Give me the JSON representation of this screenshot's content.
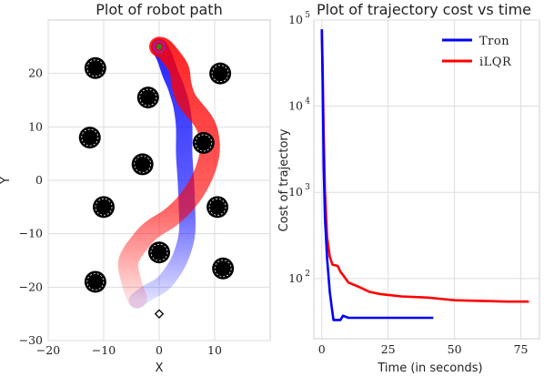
{
  "chart_data": [
    {
      "type": "scatter",
      "title": "Plot of robot path",
      "xlabel": "X",
      "ylabel": "Y",
      "xlim": [
        -20,
        20
      ],
      "ylim": [
        -30,
        30
      ],
      "xticks": [
        -20,
        -10,
        0,
        10
      ],
      "xtick_labels": [
        "−20",
        "−10",
        "0",
        "10"
      ],
      "yticks": [
        -30,
        -20,
        -10,
        0,
        10,
        20
      ],
      "ytick_labels": [
        "−30",
        "−20",
        "−10",
        "0",
        "10",
        "20"
      ],
      "grid": true,
      "obstacles": [
        {
          "x": -11.5,
          "y": 21
        },
        {
          "x": -12.5,
          "y": 8
        },
        {
          "x": -2,
          "y": 15.5
        },
        {
          "x": -3,
          "y": 3
        },
        {
          "x": -10,
          "y": -5
        },
        {
          "x": 11,
          "y": 20
        },
        {
          "x": 8,
          "y": 7
        },
        {
          "x": 10.5,
          "y": -5
        },
        {
          "x": 0,
          "y": -13.5
        },
        {
          "x": -11.5,
          "y": -19
        },
        {
          "x": 11.5,
          "y": -16.5
        }
      ],
      "start": {
        "x": 0,
        "y": -25
      },
      "goal": {
        "x": 0,
        "y": 25
      },
      "series": [
        {
          "name": "Tron",
          "color": "#0000ff",
          "points": [
            [
              -4,
              -22.5
            ],
            [
              -2,
              -21
            ],
            [
              0.5,
              -19.5
            ],
            [
              2.5,
              -17
            ],
            [
              4,
              -14
            ],
            [
              5,
              -10
            ],
            [
              5,
              -5
            ],
            [
              4.8,
              0
            ],
            [
              4.5,
              5
            ],
            [
              4.5,
              10
            ],
            [
              4,
              14
            ],
            [
              3,
              17.5
            ],
            [
              2,
              20
            ],
            [
              1,
              23
            ],
            [
              0,
              25
            ]
          ]
        },
        {
          "name": "iLQR",
          "color": "#ff0000",
          "points": [
            [
              -4,
              -22
            ],
            [
              -5,
              -19
            ],
            [
              -5.5,
              -15
            ],
            [
              -3,
              -11
            ],
            [
              -1,
              -9
            ],
            [
              2,
              -7
            ],
            [
              5,
              -4
            ],
            [
              7.5,
              0
            ],
            [
              9,
              4.5
            ],
            [
              9,
              8
            ],
            [
              8,
              11
            ],
            [
              5,
              15
            ],
            [
              4,
              18
            ],
            [
              3.5,
              21
            ],
            [
              1,
              24.5
            ],
            [
              0,
              25
            ]
          ]
        }
      ]
    },
    {
      "type": "line",
      "title": "Plot of trajectory cost vs time",
      "xlabel": "Time (in seconds)",
      "ylabel": "Cost of trajectory",
      "xlim": [
        -3,
        82
      ],
      "ylim": [
        20,
        100000
      ],
      "yscale": "log",
      "xticks": [
        0,
        25,
        50,
        75
      ],
      "xtick_labels": [
        "0",
        "25",
        "50",
        "75"
      ],
      "yticks": [
        100,
        1000,
        10000,
        100000
      ],
      "ytick_labels": [
        "10",
        "10",
        "10",
        "10"
      ],
      "ytick_exponents": [
        "2",
        "3",
        "4",
        "5"
      ],
      "grid": true,
      "legend_position": "top-right",
      "series": [
        {
          "name": "Tron",
          "color": "#0000ff",
          "x": [
            0,
            0.3,
            0.7,
            1.2,
            2,
            3,
            3.8,
            4.4,
            5.5,
            6.2,
            7,
            8,
            10,
            15,
            20,
            30,
            40,
            42
          ],
          "y": [
            78000,
            20000,
            2000,
            500,
            170,
            70,
            45,
            33,
            33,
            33,
            33,
            37,
            35,
            35,
            35,
            35,
            35,
            35
          ]
        },
        {
          "name": "iLQR",
          "color": "#ff0000",
          "x": [
            0,
            0.3,
            0.7,
            1.2,
            2,
            3,
            4,
            6,
            7,
            8,
            10,
            14,
            18,
            22,
            30,
            40,
            45,
            50,
            60,
            70,
            78
          ],
          "y": [
            78000,
            30000,
            5000,
            1000,
            300,
            180,
            145,
            140,
            120,
            110,
            90,
            80,
            70,
            66,
            62,
            60,
            58,
            56,
            55,
            54,
            54
          ]
        }
      ]
    }
  ]
}
